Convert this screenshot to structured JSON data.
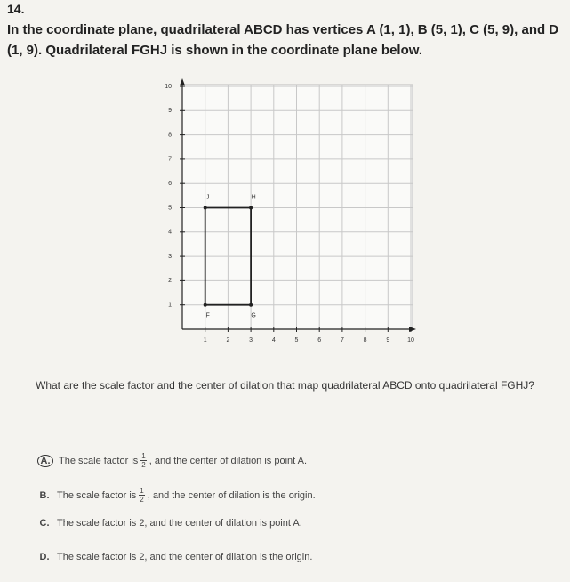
{
  "question": {
    "number": "14.",
    "prompt": "In the coordinate plane, quadrilateral ABCD has vertices A (1, 1), B (5, 1), C (5, 9), and D (1, 9). Quadrilateral FGHJ is shown in the coordinate plane below.",
    "graph": {
      "xlim": [
        0,
        10
      ],
      "ylim": [
        0,
        10
      ],
      "xticks": [
        1,
        2,
        3,
        4,
        5,
        6,
        7,
        8,
        9,
        10
      ],
      "yticks": [
        1,
        2,
        3,
        4,
        5,
        6,
        7,
        8,
        9,
        10
      ],
      "vertices": [
        {
          "label": "F",
          "x": 1,
          "y": 1
        },
        {
          "label": "G",
          "x": 3,
          "y": 1
        },
        {
          "label": "H",
          "x": 3,
          "y": 5
        },
        {
          "label": "J",
          "x": 1,
          "y": 5
        }
      ]
    },
    "ask": "What are the scale factor and the center of dilation that map quadrilateral ABCD onto quadrilateral FGHJ?",
    "choices": [
      {
        "letter": "A.",
        "before": "The scale factor is",
        "numerator": "1",
        "denominator": "2",
        "after": ", and the center of dilation is point A."
      },
      {
        "letter": "B.",
        "before": "The scale factor is",
        "numerator": "1",
        "denominator": "2",
        "after": ", and the center of dilation is the origin."
      },
      {
        "letter": "C.",
        "before": "The scale factor is 2, and the center of dilation is point A."
      },
      {
        "letter": "D.",
        "before": "The scale factor is 2, and the center of dilation is the origin."
      }
    ]
  }
}
